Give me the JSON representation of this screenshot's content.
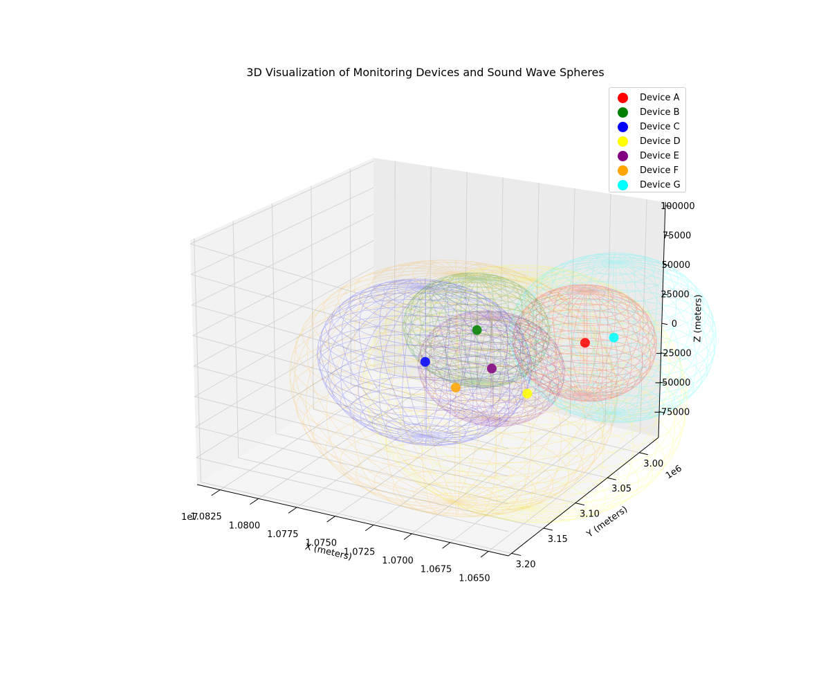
{
  "chart_data": {
    "type": "scatter",
    "title": "3D Visualization of Monitoring Devices and Sound Wave Spheres",
    "xlabel": "X (meters)",
    "ylabel": "Y (meters)",
    "zlabel": "Z (meters)",
    "x_offset_label": "1e7",
    "y_offset_label": "1e6",
    "x_ticks": [
      "1.0825",
      "1.0800",
      "1.0775",
      "1.0750",
      "1.0725",
      "1.0700",
      "1.0675",
      "1.0650"
    ],
    "y_ticks": [
      "3.00",
      "3.05",
      "3.10",
      "3.15",
      "3.20"
    ],
    "z_ticks": [
      "100000",
      "75000",
      "50000",
      "25000",
      "0",
      "−25000",
      "−50000",
      "−75000"
    ],
    "xlim": [
      10637000,
      10840000
    ],
    "ylim": [
      2970000,
      3205000
    ],
    "zlim": [
      -97000,
      103000
    ],
    "grid": true,
    "legend_position": "top-right",
    "series": [
      {
        "name": "Device A",
        "color": "#ff0000",
        "x": 10662000,
        "y": 3032000,
        "z": 5000,
        "radius": 45000
      },
      {
        "name": "Device B",
        "color": "#008000",
        "x": 10720000,
        "y": 3066000,
        "z": 15000,
        "radius": 45000
      },
      {
        "name": "Device C",
        "color": "#0000ff",
        "x": 10742000,
        "y": 3093000,
        "z": -8000,
        "radius": 65000
      },
      {
        "name": "Device D",
        "color": "#ffff00",
        "x": 10681000,
        "y": 3076000,
        "z": -25000,
        "radius": 100000
      },
      {
        "name": "Device E",
        "color": "#800080",
        "x": 10701000,
        "y": 3085000,
        "z": -5000,
        "radius": 45000
      },
      {
        "name": "Device F",
        "color": "#ffa500",
        "x": 10722000,
        "y": 3092000,
        "z": -25000,
        "radius": 100000
      },
      {
        "name": "Device G",
        "color": "#00ffff",
        "x": 10650000,
        "y": 3015000,
        "z": 5000,
        "radius": 65000
      }
    ]
  }
}
